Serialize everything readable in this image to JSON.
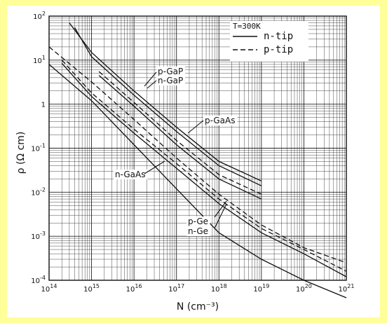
{
  "chart_data": {
    "type": "line",
    "xlabel": "N (cm⁻³)",
    "ylabel": "ρ (Ω cm)",
    "x_scale": "log",
    "y_scale": "log",
    "xlim": [
      100000000000000.0,
      1e+21
    ],
    "ylim": [
      0.0001,
      100
    ],
    "grid": true,
    "x_ticks": [
      {
        "base": "10",
        "exp": "14"
      },
      {
        "base": "10",
        "exp": "15"
      },
      {
        "base": "10",
        "exp": "16"
      },
      {
        "base": "10",
        "exp": "17"
      },
      {
        "base": "10",
        "exp": "18"
      },
      {
        "base": "10",
        "exp": "19"
      },
      {
        "base": "10",
        "exp": "20"
      },
      {
        "base": "10",
        "exp": "21"
      }
    ],
    "y_ticks": [
      {
        "base": "10",
        "exp": "-4"
      },
      {
        "base": "10",
        "exp": "-3"
      },
      {
        "base": "10",
        "exp": "-2"
      },
      {
        "base": "10",
        "exp": "-1"
      },
      {
        "base": "1",
        "exp": ""
      },
      {
        "base": "10",
        "exp": "1"
      },
      {
        "base": "10",
        "exp": "2"
      }
    ],
    "legend": {
      "title": "T=300K",
      "entries": [
        {
          "label": "n-tip",
          "style": "solid"
        },
        {
          "label": "p-tip",
          "style": "dashed"
        }
      ],
      "position": "top-right"
    },
    "annotations": [
      "p-GaP",
      "n-GaP",
      "p-GaAs",
      "n-GaAs",
      "p-Ge",
      "n-Ge"
    ],
    "series": [
      {
        "style": "solid",
        "x": [
          200000000000000.0,
          1000000000000000.0,
          1e+16,
          1e+17,
          1e+18,
          1e+19,
          1e+20,
          1e+21
        ],
        "y": [
          8.5,
          1.5,
          0.22,
          0.035,
          0.0055,
          0.0012,
          0.0004,
          0.00012
        ]
      },
      {
        "style": "dashed",
        "x": [
          200000000000000.0,
          1000000000000000.0,
          1e+16,
          1e+17,
          1e+18,
          1e+19,
          1e+20,
          1e+21
        ],
        "y": [
          10,
          1.8,
          0.27,
          0.045,
          0.007,
          0.0015,
          0.0005,
          0.00016
        ]
      },
      {
        "style": "solid",
        "x": [
          100000000000000.0,
          1000000000000000.0,
          1e+16,
          1e+17,
          1e+18,
          1e+19,
          1e+20,
          1e+21
        ],
        "y": [
          8,
          1.2,
          0.12,
          0.012,
          0.0012,
          0.0003,
          0.0001,
          4e-05
        ]
      },
      {
        "style": "dashed",
        "x": [
          100000000000000.0,
          1000000000000000.0,
          1e+16,
          1e+17,
          1e+18,
          1e+19,
          1e+20,
          1e+21
        ],
        "y": [
          20,
          3.2,
          0.45,
          0.06,
          0.009,
          0.0018,
          0.00055,
          0.00025
        ]
      },
      {
        "style": "dashed",
        "x": [
          1500000000000000.0,
          1e+16,
          1e+17,
          1e+18,
          1e+19
        ],
        "y": [
          5.5,
          1.1,
          0.15,
          0.025,
          0.009
        ]
      },
      {
        "style": "solid",
        "x": [
          1500000000000000.0,
          1e+16,
          1e+17,
          1e+18,
          1e+19
        ],
        "y": [
          4.5,
          0.9,
          0.12,
          0.02,
          0.007
        ]
      },
      {
        "style": "solid",
        "x": [
          300000000000000.0,
          1000000000000000.0,
          1e+16,
          1e+17,
          1e+18,
          1e+19
        ],
        "y": [
          70,
          15,
          2,
          0.3,
          0.05,
          0.018
        ]
      },
      {
        "style": "solid",
        "x": [
          400000000000000.0,
          1000000000000000.0,
          1e+16,
          1e+17,
          1e+18,
          1e+19
        ],
        "y": [
          55,
          12,
          1.6,
          0.24,
          0.04,
          0.014
        ]
      }
    ]
  }
}
